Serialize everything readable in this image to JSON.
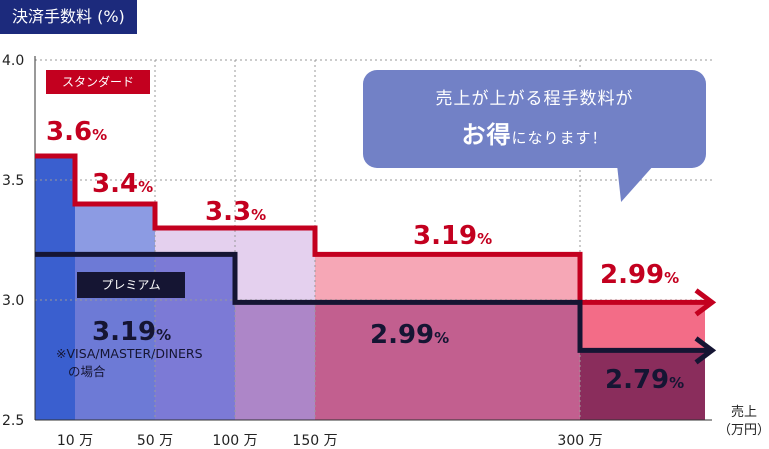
{
  "title": "決済手数料 (%)",
  "callout": {
    "line1": "売上が上がる程手数料が",
    "line2_big": "お得",
    "line2_rest": "になります！",
    "color": "#7281c6"
  },
  "x_unit_label": [
    "売上",
    "（万円）"
  ],
  "premium_note": [
    "※VISA/MASTER/DINERS",
    "の場合"
  ],
  "chart_data": {
    "type": "line",
    "ylim": [
      2.5,
      4.0
    ],
    "yticks": [
      "2.5",
      "3.0",
      "3.5",
      "4.0"
    ],
    "xticks": [
      "10 万",
      "50 万",
      "100 万",
      "150 万",
      "300 万"
    ],
    "series": [
      {
        "name": "スタンダード",
        "color": "#c3001f",
        "steps": [
          {
            "from": "0",
            "to": "10 万",
            "value": 3.6,
            "label": "3.6"
          },
          {
            "from": "10 万",
            "to": "50 万",
            "value": 3.4,
            "label": "3.4"
          },
          {
            "from": "50 万",
            "to": "150 万",
            "value": 3.3,
            "label": "3.3"
          },
          {
            "from": "150 万",
            "to": "300 万",
            "value": 3.19,
            "label": "3.19"
          },
          {
            "from": "300 万",
            "to": "",
            "value": 2.99,
            "label": "2.99"
          }
        ]
      },
      {
        "name": "プレミアム",
        "color": "#151533",
        "steps": [
          {
            "from": "0",
            "to": "100 万",
            "value": 3.19,
            "label": "3.19"
          },
          {
            "from": "100 万",
            "to": "300 万",
            "value": 2.99,
            "label": "2.99"
          },
          {
            "from": "300 万",
            "to": "",
            "value": 2.79,
            "label": "2.79"
          }
        ]
      }
    ],
    "percent_sign": "%"
  }
}
